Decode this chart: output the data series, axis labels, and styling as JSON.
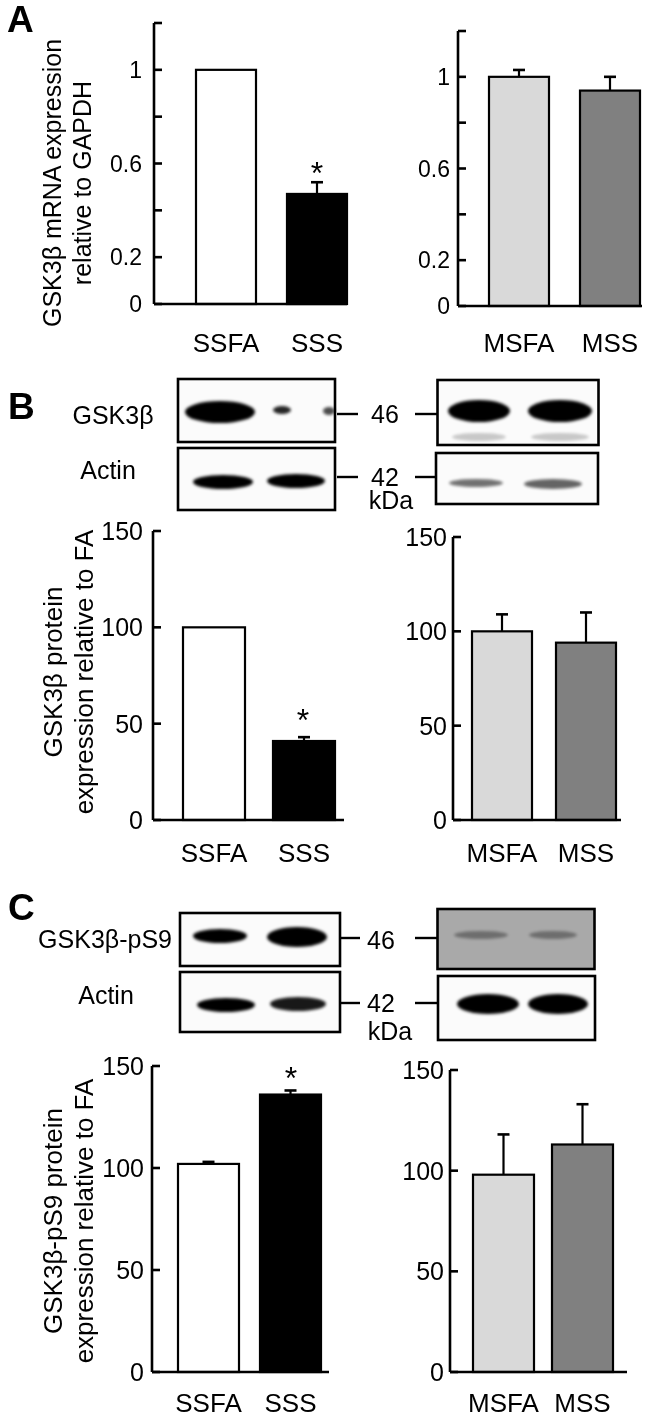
{
  "chart_data": [
    {
      "type": "bar",
      "title": "A",
      "ylabel": "GSK3β mRNA expression\nrelative to GAPDH",
      "categories": [
        "SSFA",
        "SSS"
      ],
      "values": [
        1,
        0.47
      ],
      "errors": [
        null,
        0.05
      ],
      "colors": [
        "#ffffff",
        "#000000"
      ],
      "ylim": [
        0,
        1.2
      ],
      "yticks": [
        0,
        0.2,
        {
          "value": 0.4,
          "label": null
        },
        0.6,
        {
          "value": 0.8,
          "label": null
        },
        1,
        {
          "value": 1.2,
          "label": null
        }
      ],
      "annotations": [
        "*"
      ]
    },
    {
      "type": "bar",
      "categories": [
        "MSFA",
        "MSS"
      ],
      "values": [
        1,
        0.94
      ],
      "errors": [
        0.03,
        0.06
      ],
      "colors": [
        "#d9d9d9",
        "#808080"
      ],
      "ylim": [
        0,
        1.2
      ],
      "yticks": [
        0,
        0.2,
        {
          "value": 0.4,
          "label": null
        },
        0.6,
        {
          "value": 0.8,
          "label": null
        },
        1,
        {
          "value": 1.2,
          "label": null
        }
      ]
    },
    {
      "type": "bar",
      "title": "B",
      "ylabel": "GSK3β protein\nexpression relative to FA",
      "categories": [
        "SSFA",
        "SSS"
      ],
      "values": [
        100,
        41
      ],
      "errors": [
        null,
        2
      ],
      "colors": [
        "#ffffff",
        "#000000"
      ],
      "ylim": [
        0,
        150
      ],
      "yticks": [
        0,
        50,
        100,
        150
      ],
      "annotations": [
        "*",
        "GSK3β",
        "Actin",
        "46",
        "42",
        "kDa"
      ]
    },
    {
      "type": "bar",
      "categories": [
        "MSFA",
        "MSS"
      ],
      "values": [
        100,
        94
      ],
      "errors": [
        9,
        16
      ],
      "colors": [
        "#d9d9d9",
        "#808080"
      ],
      "ylim": [
        0,
        150
      ],
      "yticks": [
        0,
        50,
        100,
        150
      ]
    },
    {
      "type": "bar",
      "title": "C",
      "ylabel": "GSK3β-pS9 protein\nexpression relative to FA",
      "categories": [
        "SSFA",
        "SSS"
      ],
      "values": [
        102,
        136
      ],
      "errors": [
        1,
        2
      ],
      "colors": [
        "#ffffff",
        "#000000"
      ],
      "ylim": [
        0,
        150
      ],
      "yticks": [
        0,
        50,
        100,
        150
      ],
      "annotations": [
        "*",
        "GSK3β-pS9",
        "Actin",
        "46",
        "42",
        "kDa"
      ]
    },
    {
      "type": "bar",
      "categories": [
        "MSFA",
        "MSS"
      ],
      "values": [
        98,
        113
      ],
      "errors": [
        20,
        20
      ],
      "colors": [
        "#d9d9d9",
        "#808080"
      ],
      "ylim": [
        0,
        150
      ],
      "yticks": [
        0,
        50,
        100,
        150
      ]
    }
  ]
}
